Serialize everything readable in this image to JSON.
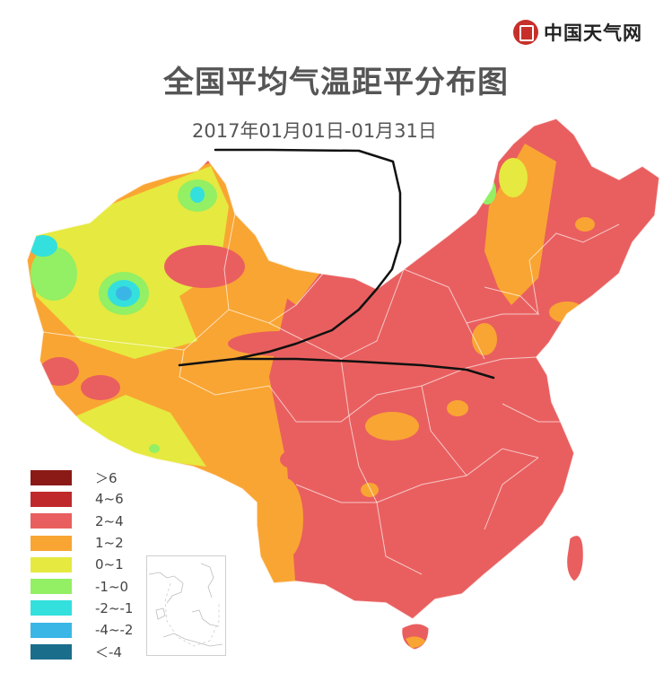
{
  "logo": {
    "icon": "weather-seal-icon",
    "text": "中国天气网",
    "color": "#c7302a"
  },
  "title": "全国平均气温距平分布图",
  "subtitle": "2017年01月01日-01月31日",
  "legend": [
    {
      "label": "＞6",
      "color": "#8b1a16"
    },
    {
      "label": "4~6",
      "color": "#c0292b"
    },
    {
      "label": "2~4",
      "color": "#e95f5f"
    },
    {
      "label": "1~2",
      "color": "#f9a533"
    },
    {
      "label": "0~1",
      "color": "#e6e93f"
    },
    {
      "label": "-1~0",
      "color": "#93ef63"
    },
    {
      "label": "-2~-1",
      "color": "#33e0dd"
    },
    {
      "label": "-4~-2",
      "color": "#3ab6e6"
    },
    {
      "label": "＜-4",
      "color": "#1a6e8c"
    }
  ],
  "inset": {
    "name": "south-china-sea-inset"
  }
}
